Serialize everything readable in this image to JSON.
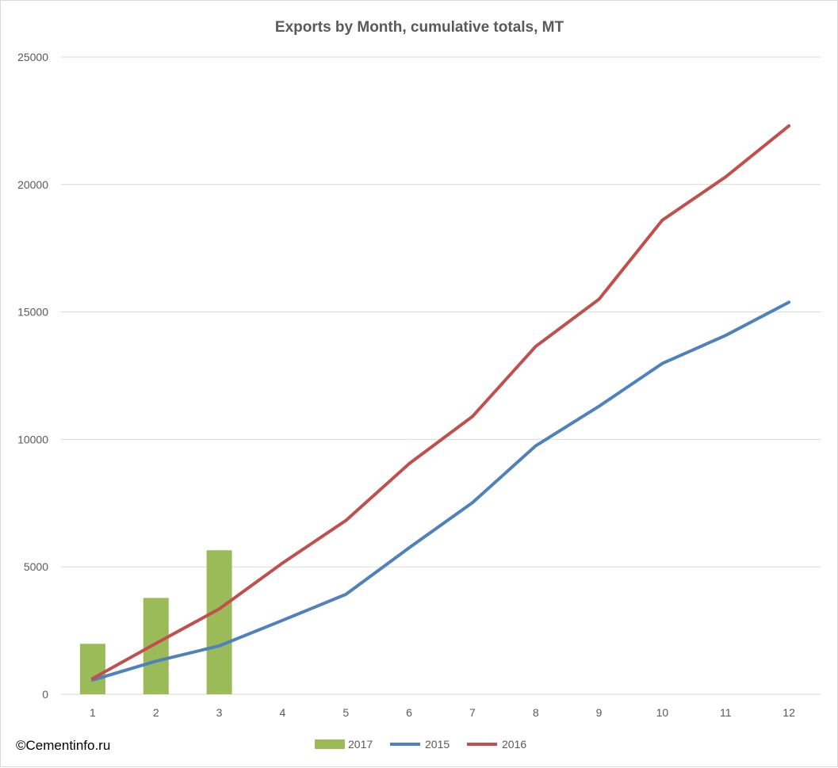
{
  "chart_data": {
    "type": "bar+line",
    "title": "Exports by Month, cumulative totals, MT",
    "categories": [
      "1",
      "2",
      "3",
      "4",
      "5",
      "6",
      "7",
      "8",
      "9",
      "10",
      "11",
      "12"
    ],
    "y_ticks": [
      "0",
      "5000",
      "10000",
      "15000",
      "20000",
      "25000"
    ],
    "ylim": [
      0,
      25000
    ],
    "grid": true,
    "legend_position": "bottom",
    "series": [
      {
        "name": "2017",
        "kind": "bar",
        "color": "#9bbb59",
        "values": [
          1980,
          3780,
          5650,
          null,
          null,
          null,
          null,
          null,
          null,
          null,
          null,
          null
        ]
      },
      {
        "name": "2015",
        "kind": "line",
        "color": "#4f81bd",
        "values": [
          560,
          1300,
          1900,
          2900,
          3920,
          5750,
          7520,
          9750,
          11300,
          12980,
          14080,
          15380
        ]
      },
      {
        "name": "2016",
        "kind": "line",
        "color": "#c0504d",
        "values": [
          620,
          2000,
          3350,
          5150,
          6820,
          9050,
          10900,
          13650,
          15500,
          18600,
          20300,
          22300
        ]
      }
    ]
  },
  "credit": "©Cementinfo.ru"
}
